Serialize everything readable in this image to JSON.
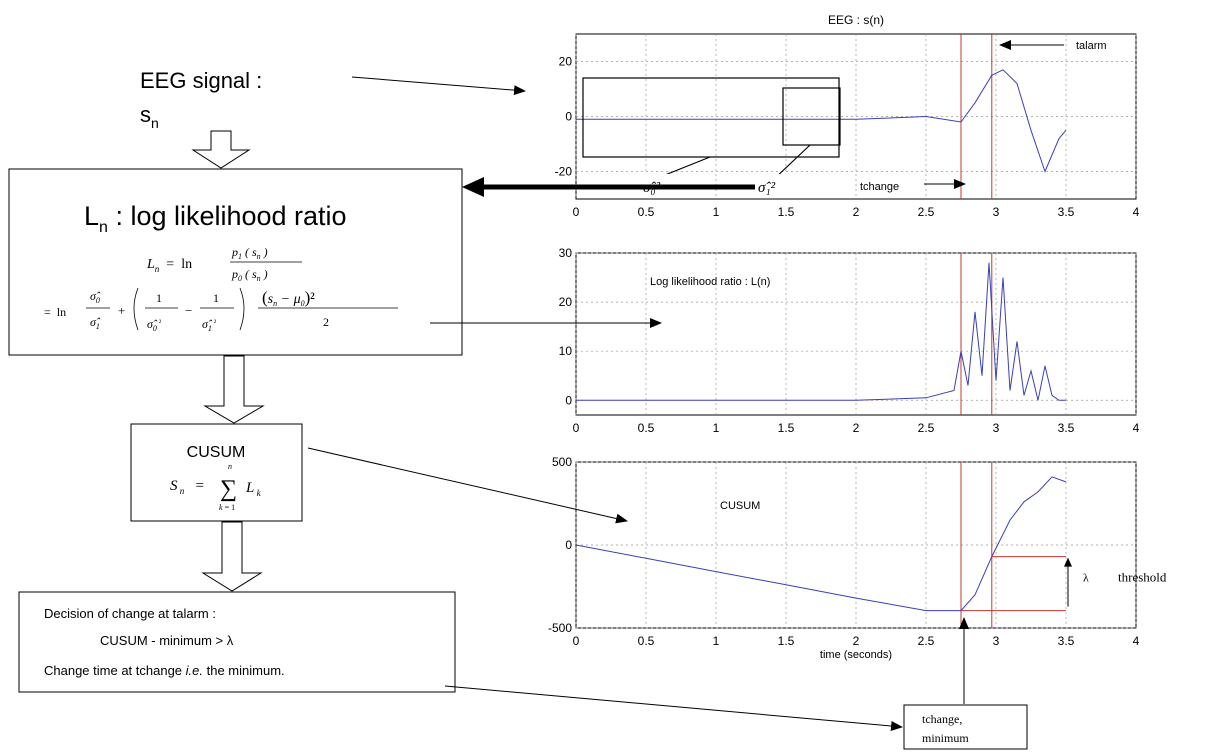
{
  "flow": {
    "eeg_signal_line1": "EEG signal :",
    "eeg_signal_s": "s",
    "eeg_signal_sub": "n",
    "llr_title_L": "L",
    "llr_title_sub": "n",
    "llr_title_rest": " : log likelihood ratio",
    "cusum_label": "CUSUM",
    "decision_line1": "Decision of change at talarm :",
    "decision_line2": "CUSUM - minimum > λ",
    "decision_line3a": "Change time at tchange ",
    "decision_line3b": "i.e.",
    "decision_line3c": " the minimum.",
    "tchange_min_line1": "tchange,",
    "tchange_min_line2": "minimum"
  },
  "sigma_labels": {
    "sigma0": "σ̂₀²",
    "sigma1": "σ̂₁²"
  },
  "chart_data": [
    {
      "type": "line",
      "title": "EEG : s(n)",
      "xlim": [
        0,
        4
      ],
      "ylim": [
        -30,
        30
      ],
      "x_ticks": [
        "0",
        "0.5",
        "1",
        "1.5",
        "2",
        "2.5",
        "3",
        "3.5",
        "4"
      ],
      "y_ticks": [
        "20",
        "0",
        "-20"
      ],
      "annotations": [
        "talarm",
        "tchange"
      ],
      "tchange": 2.75,
      "talarm": 2.97,
      "series": [
        {
          "x": [
            0,
            0.5,
            1.0,
            1.5,
            2.0,
            2.5,
            2.75,
            2.85,
            2.97,
            3.05,
            3.15,
            3.25,
            3.35,
            3.45,
            3.5
          ],
          "values": [
            -1,
            -1,
            -1,
            -1,
            -1,
            0,
            -2,
            5,
            15,
            17,
            12,
            -5,
            -20,
            -8,
            -5
          ]
        }
      ],
      "grid": true
    },
    {
      "type": "line",
      "title": "",
      "annotation_text": "Log likelihood ratio : L(n)",
      "xlim": [
        0,
        4
      ],
      "ylim": [
        -3,
        30
      ],
      "x_ticks": [
        "0",
        "0.5",
        "1",
        "1.5",
        "2",
        "2.5",
        "3",
        "3.5",
        "4"
      ],
      "y_ticks": [
        "30",
        "20",
        "10",
        "0"
      ],
      "tchange": 2.75,
      "talarm": 2.97,
      "series": [
        {
          "x": [
            0,
            0.5,
            1.0,
            1.5,
            2.0,
            2.5,
            2.7,
            2.75,
            2.8,
            2.85,
            2.9,
            2.95,
            3.0,
            3.05,
            3.1,
            3.15,
            3.2,
            3.25,
            3.3,
            3.35,
            3.4,
            3.45,
            3.5
          ],
          "values": [
            0,
            0,
            0,
            0,
            0,
            0.5,
            2,
            10,
            3,
            18,
            5,
            28,
            4,
            25,
            2,
            12,
            1,
            6,
            0,
            7,
            1,
            0,
            0
          ]
        }
      ],
      "grid": true
    },
    {
      "type": "line",
      "title": "",
      "annotation_text": "CUSUM",
      "xlabel": "time (seconds)",
      "xlim": [
        0,
        4
      ],
      "ylim": [
        -500,
        500
      ],
      "x_ticks": [
        "0",
        "0.5",
        "1",
        "1.5",
        "2",
        "2.5",
        "3",
        "3.5",
        "4"
      ],
      "y_ticks": [
        "500",
        "0",
        "-500"
      ],
      "tchange": 2.75,
      "talarm": 2.97,
      "threshold_label": "threshold",
      "lambda_label": "λ",
      "minimum_value": -395,
      "threshold_value": -70,
      "series": [
        {
          "x": [
            0,
            0.5,
            1.0,
            1.5,
            2.0,
            2.5,
            2.7,
            2.75,
            2.85,
            2.97,
            3.1,
            3.2,
            3.3,
            3.4,
            3.5
          ],
          "values": [
            0,
            -80,
            -160,
            -240,
            -320,
            -395,
            -395,
            -395,
            -300,
            -70,
            150,
            260,
            320,
            410,
            380
          ]
        }
      ],
      "grid": true
    }
  ]
}
